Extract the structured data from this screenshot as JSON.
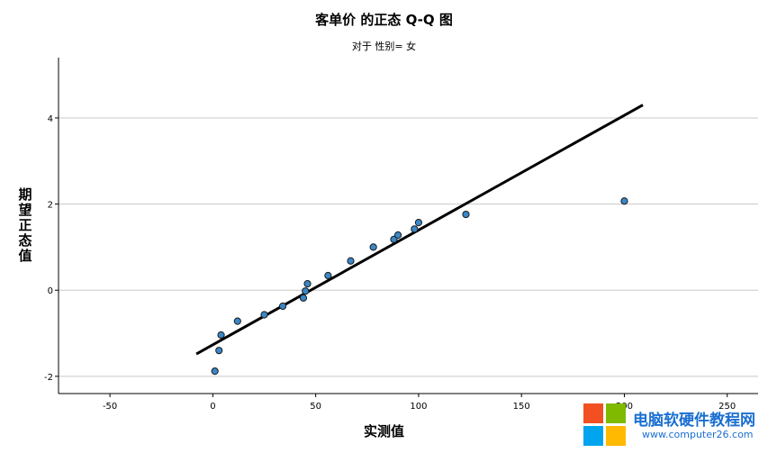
{
  "chart_data": {
    "type": "scatter",
    "title": "客单价 的正态 Q-Q 图",
    "subtitle": "对于 性别= 女",
    "xlabel": "实测值",
    "ylabel": "期望正态值",
    "xlim": [
      -75,
      265
    ],
    "ylim": [
      -2.4,
      5.4
    ],
    "xticks": [
      -50,
      0,
      50,
      100,
      150,
      200,
      250
    ],
    "yticks": [
      -2,
      0,
      2,
      4
    ],
    "grid": "horizontal",
    "points": [
      {
        "x": 1,
        "y": -1.88
      },
      {
        "x": 3,
        "y": -1.4
      },
      {
        "x": 4,
        "y": -1.04
      },
      {
        "x": 12,
        "y": -0.72
      },
      {
        "x": 25,
        "y": -0.57
      },
      {
        "x": 34,
        "y": -0.37
      },
      {
        "x": 44,
        "y": -0.18
      },
      {
        "x": 45,
        "y": -0.02
      },
      {
        "x": 46,
        "y": 0.15
      },
      {
        "x": 56,
        "y": 0.34
      },
      {
        "x": 67,
        "y": 0.68
      },
      {
        "x": 78,
        "y": 1.0
      },
      {
        "x": 88,
        "y": 1.18
      },
      {
        "x": 90,
        "y": 1.28
      },
      {
        "x": 98,
        "y": 1.42
      },
      {
        "x": 100,
        "y": 1.57
      },
      {
        "x": 123,
        "y": 1.76
      },
      {
        "x": 200,
        "y": 2.07
      }
    ],
    "reference_line": {
      "x": [
        -8,
        209
      ],
      "y": [
        -1.48,
        4.3
      ]
    },
    "point_color": "#3a87c8"
  },
  "watermark": {
    "text": "电脑软硬件教程网",
    "url": "www.computer26.com",
    "colors": [
      "#f25022",
      "#7fba00",
      "#00a4ef",
      "#ffb900"
    ]
  }
}
